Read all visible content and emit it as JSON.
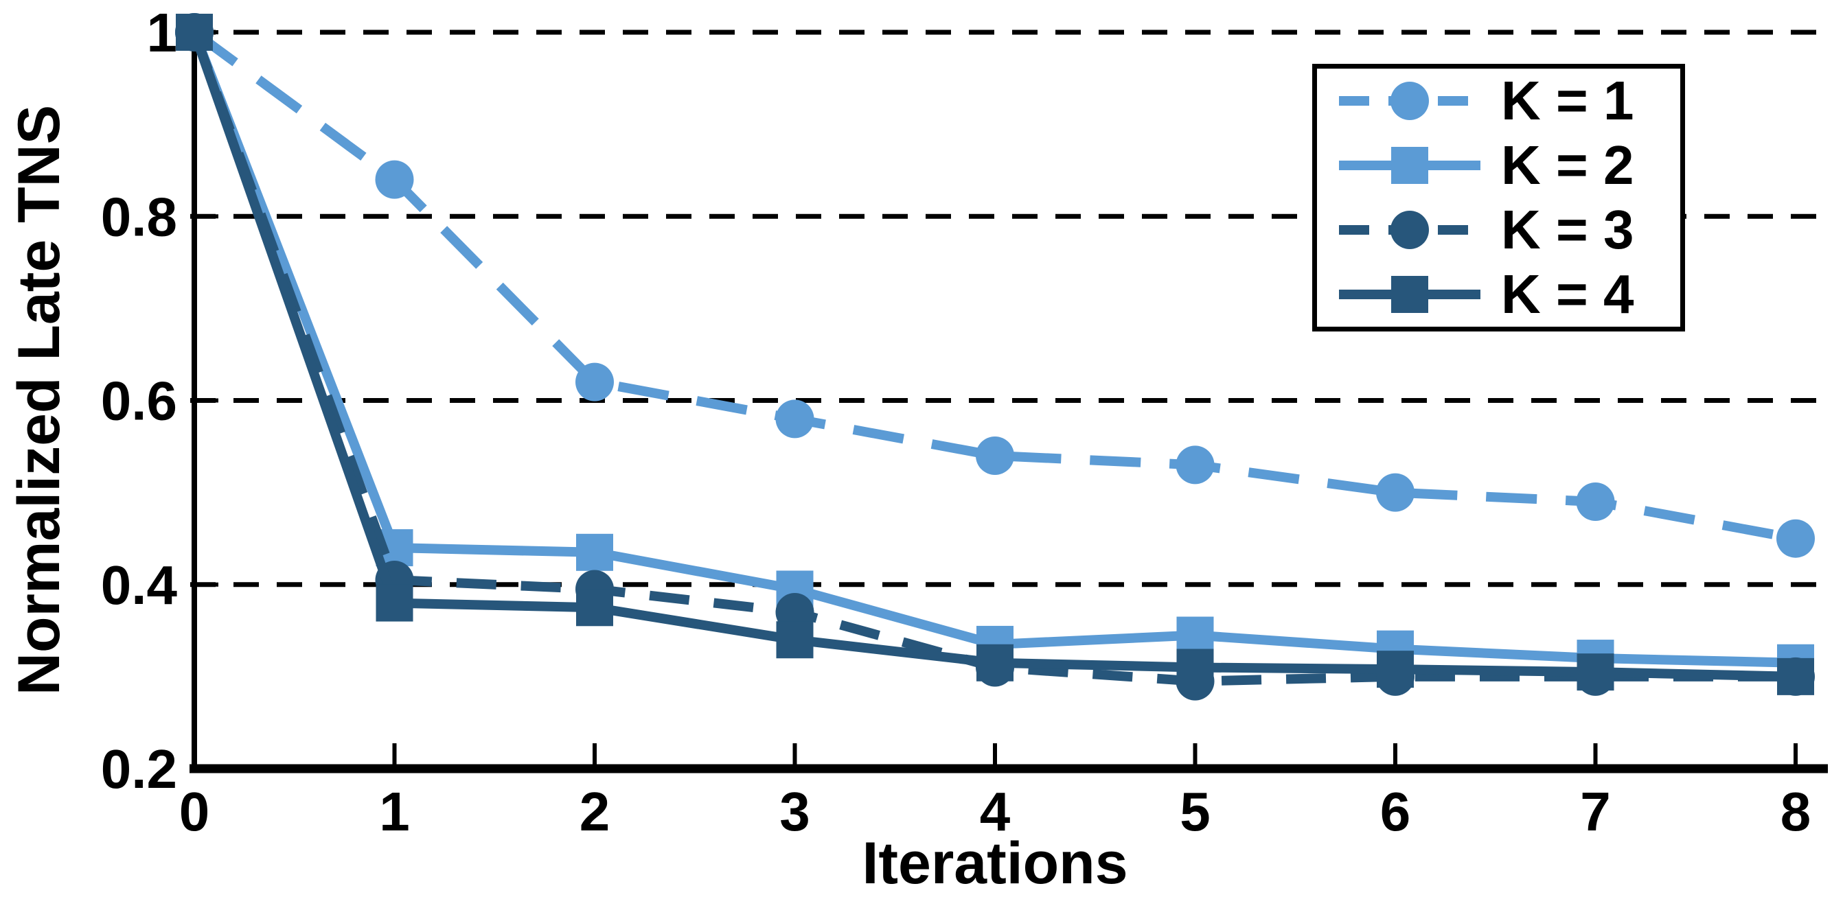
{
  "chart_data": {
    "type": "line",
    "title": "",
    "xlabel": "Iterations",
    "ylabel": "Normalized Late TNS",
    "x": [
      0,
      1,
      2,
      3,
      4,
      5,
      6,
      7,
      8
    ],
    "xlim": [
      0,
      8
    ],
    "ylim": [
      0.2,
      1.0
    ],
    "xticks": [
      0,
      1,
      2,
      3,
      4,
      5,
      6,
      7,
      8
    ],
    "xtick_labels": [
      "0",
      "1",
      "2",
      "3",
      "4",
      "5",
      "6",
      "7",
      "8"
    ],
    "yticks": [
      0.2,
      0.4,
      0.6,
      0.8,
      1
    ],
    "ytick_labels": [
      "0.2",
      "0.4",
      "0.6",
      "0.8",
      "1"
    ],
    "grid": "horizontal dashed black lines at 0.4, 0.6, 0.8, 1.0",
    "legend_position": "upper right",
    "colors": {
      "light_blue": "#5B9BD5",
      "dark_blue": "#27567B",
      "axis_black": "#000000",
      "background": "#FFFFFF"
    },
    "series": [
      {
        "name": "K = 1",
        "color": "#5B9BD5",
        "line_style": "dashed",
        "marker": "circle",
        "values": [
          1.0,
          0.84,
          0.62,
          0.58,
          0.54,
          0.53,
          0.5,
          0.49,
          0.45
        ]
      },
      {
        "name": "K = 2",
        "color": "#5B9BD5",
        "line_style": "solid",
        "marker": "square",
        "values": [
          1.0,
          0.44,
          0.435,
          0.395,
          0.335,
          0.345,
          0.33,
          0.32,
          0.315
        ]
      },
      {
        "name": "K = 3",
        "color": "#27567B",
        "line_style": "dashed",
        "marker": "circle",
        "values": [
          1.0,
          0.405,
          0.395,
          0.37,
          0.31,
          0.295,
          0.3,
          0.3,
          0.3
        ]
      },
      {
        "name": "K = 4",
        "color": "#27567B",
        "line_style": "solid",
        "marker": "square",
        "values": [
          1.0,
          0.38,
          0.375,
          0.34,
          0.315,
          0.31,
          0.308,
          0.305,
          0.3
        ]
      }
    ]
  }
}
